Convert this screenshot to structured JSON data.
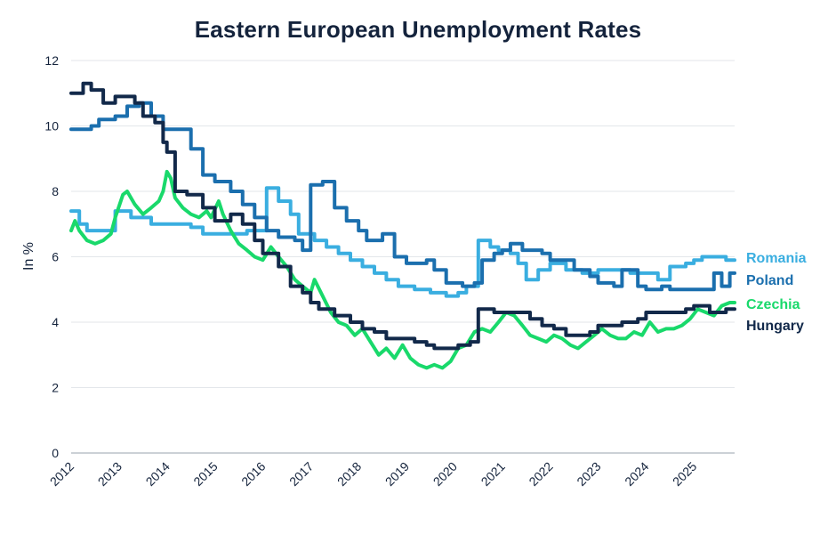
{
  "chart_data": {
    "type": "line",
    "title": "Eastern European Unemployment Rates",
    "ylabel": "In %",
    "xlabel": "",
    "xlim": [
      2012,
      2025.85
    ],
    "ylim": [
      0,
      12
    ],
    "yticks": [
      0,
      2,
      4,
      6,
      8,
      10,
      12
    ],
    "xticks": [
      "2012",
      "2013",
      "2014",
      "2015",
      "2016",
      "2017",
      "2018",
      "2019",
      "2020",
      "2021",
      "2022",
      "2023",
      "2024",
      "2025"
    ],
    "grid": true,
    "legend_placement": "right-end",
    "series": [
      {
        "name": "Romania",
        "color": "#3aaee0",
        "step": true,
        "points": [
          [
            2012,
            7.4
          ],
          [
            2012.17,
            7.0
          ],
          [
            2012.33,
            6.8
          ],
          [
            2012.75,
            6.8
          ],
          [
            2012.92,
            7.4
          ],
          [
            2013.25,
            7.2
          ],
          [
            2013.67,
            7.0
          ],
          [
            2014.17,
            7.0
          ],
          [
            2014.5,
            6.9
          ],
          [
            2014.75,
            6.7
          ],
          [
            2015.25,
            6.7
          ],
          [
            2015.67,
            6.8
          ],
          [
            2016.08,
            8.1
          ],
          [
            2016.33,
            7.7
          ],
          [
            2016.58,
            7.3
          ],
          [
            2016.75,
            6.7
          ],
          [
            2017.08,
            6.5
          ],
          [
            2017.33,
            6.3
          ],
          [
            2017.58,
            6.1
          ],
          [
            2017.83,
            5.9
          ],
          [
            2018.08,
            5.7
          ],
          [
            2018.33,
            5.5
          ],
          [
            2018.58,
            5.3
          ],
          [
            2018.83,
            5.1
          ],
          [
            2019.17,
            5.0
          ],
          [
            2019.5,
            4.9
          ],
          [
            2019.83,
            4.8
          ],
          [
            2020.08,
            4.9
          ],
          [
            2020.25,
            5.1
          ],
          [
            2020.5,
            6.5
          ],
          [
            2020.75,
            6.3
          ],
          [
            2020.92,
            6.2
          ],
          [
            2021.17,
            6.1
          ],
          [
            2021.33,
            5.8
          ],
          [
            2021.5,
            5.3
          ],
          [
            2021.75,
            5.6
          ],
          [
            2022.0,
            5.8
          ],
          [
            2022.33,
            5.6
          ],
          [
            2022.67,
            5.5
          ],
          [
            2023.0,
            5.6
          ],
          [
            2023.33,
            5.6
          ],
          [
            2023.67,
            5.5
          ],
          [
            2024.0,
            5.5
          ],
          [
            2024.25,
            5.3
          ],
          [
            2024.5,
            5.7
          ],
          [
            2024.83,
            5.8
          ],
          [
            2025.0,
            5.9
          ],
          [
            2025.17,
            6.0
          ],
          [
            2025.5,
            6.0
          ],
          [
            2025.67,
            5.9
          ],
          [
            2025.85,
            5.9
          ]
        ]
      },
      {
        "name": "Poland",
        "color": "#1b6fae",
        "step": true,
        "points": [
          [
            2012,
            9.9
          ],
          [
            2012.42,
            10.0
          ],
          [
            2012.58,
            10.2
          ],
          [
            2012.92,
            10.3
          ],
          [
            2013.17,
            10.6
          ],
          [
            2013.42,
            10.7
          ],
          [
            2013.67,
            10.3
          ],
          [
            2013.92,
            9.9
          ],
          [
            2014.5,
            9.3
          ],
          [
            2014.75,
            8.5
          ],
          [
            2015.0,
            8.3
          ],
          [
            2015.33,
            8.0
          ],
          [
            2015.58,
            7.6
          ],
          [
            2015.83,
            7.2
          ],
          [
            2016.08,
            6.8
          ],
          [
            2016.33,
            6.6
          ],
          [
            2016.67,
            6.5
          ],
          [
            2016.83,
            6.2
          ],
          [
            2017.0,
            8.2
          ],
          [
            2017.25,
            8.3
          ],
          [
            2017.5,
            7.5
          ],
          [
            2017.75,
            7.1
          ],
          [
            2018.0,
            6.8
          ],
          [
            2018.17,
            6.5
          ],
          [
            2018.5,
            6.7
          ],
          [
            2018.75,
            6.0
          ],
          [
            2019.0,
            5.8
          ],
          [
            2019.42,
            5.9
          ],
          [
            2019.58,
            5.6
          ],
          [
            2019.83,
            5.2
          ],
          [
            2020.17,
            5.1
          ],
          [
            2020.42,
            5.2
          ],
          [
            2020.58,
            5.9
          ],
          [
            2020.83,
            6.1
          ],
          [
            2021.0,
            6.2
          ],
          [
            2021.17,
            6.4
          ],
          [
            2021.42,
            6.2
          ],
          [
            2021.83,
            6.1
          ],
          [
            2022.0,
            5.9
          ],
          [
            2022.5,
            5.6
          ],
          [
            2022.83,
            5.4
          ],
          [
            2023.0,
            5.2
          ],
          [
            2023.33,
            5.1
          ],
          [
            2023.5,
            5.6
          ],
          [
            2023.83,
            5.1
          ],
          [
            2024.0,
            5.0
          ],
          [
            2024.33,
            5.1
          ],
          [
            2024.5,
            5.0
          ],
          [
            2025.0,
            5.0
          ],
          [
            2025.42,
            5.5
          ],
          [
            2025.58,
            5.1
          ],
          [
            2025.75,
            5.5
          ],
          [
            2025.85,
            5.5
          ]
        ]
      },
      {
        "name": "Czechia",
        "color": "#19d96b",
        "step": false,
        "points": [
          [
            2012,
            6.8
          ],
          [
            2012.08,
            7.1
          ],
          [
            2012.17,
            6.8
          ],
          [
            2012.33,
            6.5
          ],
          [
            2012.5,
            6.4
          ],
          [
            2012.67,
            6.5
          ],
          [
            2012.83,
            6.7
          ],
          [
            2012.92,
            7.2
          ],
          [
            2013.08,
            7.9
          ],
          [
            2013.17,
            8.0
          ],
          [
            2013.33,
            7.6
          ],
          [
            2013.5,
            7.3
          ],
          [
            2013.67,
            7.5
          ],
          [
            2013.83,
            7.7
          ],
          [
            2013.92,
            8.0
          ],
          [
            2014.0,
            8.6
          ],
          [
            2014.08,
            8.4
          ],
          [
            2014.17,
            7.8
          ],
          [
            2014.33,
            7.5
          ],
          [
            2014.5,
            7.3
          ],
          [
            2014.67,
            7.2
          ],
          [
            2014.83,
            7.4
          ],
          [
            2014.92,
            7.2
          ],
          [
            2015.08,
            7.7
          ],
          [
            2015.17,
            7.3
          ],
          [
            2015.33,
            6.8
          ],
          [
            2015.5,
            6.4
          ],
          [
            2015.67,
            6.2
          ],
          [
            2015.83,
            6.0
          ],
          [
            2016.0,
            5.9
          ],
          [
            2016.17,
            6.3
          ],
          [
            2016.33,
            6.0
          ],
          [
            2016.5,
            5.7
          ],
          [
            2016.67,
            5.3
          ],
          [
            2016.83,
            5.1
          ],
          [
            2017.0,
            4.9
          ],
          [
            2017.08,
            5.3
          ],
          [
            2017.25,
            4.8
          ],
          [
            2017.42,
            4.3
          ],
          [
            2017.58,
            4.0
          ],
          [
            2017.75,
            3.9
          ],
          [
            2017.92,
            3.6
          ],
          [
            2018.08,
            3.8
          ],
          [
            2018.25,
            3.4
          ],
          [
            2018.42,
            3.0
          ],
          [
            2018.58,
            3.2
          ],
          [
            2018.75,
            2.9
          ],
          [
            2018.92,
            3.3
          ],
          [
            2019.08,
            2.9
          ],
          [
            2019.25,
            2.7
          ],
          [
            2019.42,
            2.6
          ],
          [
            2019.58,
            2.7
          ],
          [
            2019.75,
            2.6
          ],
          [
            2019.92,
            2.8
          ],
          [
            2020.08,
            3.2
          ],
          [
            2020.25,
            3.3
          ],
          [
            2020.42,
            3.7
          ],
          [
            2020.58,
            3.8
          ],
          [
            2020.75,
            3.7
          ],
          [
            2020.92,
            4.0
          ],
          [
            2021.08,
            4.3
          ],
          [
            2021.25,
            4.2
          ],
          [
            2021.42,
            3.9
          ],
          [
            2021.58,
            3.6
          ],
          [
            2021.75,
            3.5
          ],
          [
            2021.92,
            3.4
          ],
          [
            2022.08,
            3.6
          ],
          [
            2022.25,
            3.5
          ],
          [
            2022.42,
            3.3
          ],
          [
            2022.58,
            3.2
          ],
          [
            2022.75,
            3.4
          ],
          [
            2022.92,
            3.6
          ],
          [
            2023.08,
            3.8
          ],
          [
            2023.25,
            3.6
          ],
          [
            2023.42,
            3.5
          ],
          [
            2023.58,
            3.5
          ],
          [
            2023.75,
            3.7
          ],
          [
            2023.92,
            3.6
          ],
          [
            2024.08,
            4.0
          ],
          [
            2024.25,
            3.7
          ],
          [
            2024.42,
            3.8
          ],
          [
            2024.58,
            3.8
          ],
          [
            2024.75,
            3.9
          ],
          [
            2024.92,
            4.1
          ],
          [
            2025.08,
            4.4
          ],
          [
            2025.25,
            4.3
          ],
          [
            2025.42,
            4.2
          ],
          [
            2025.58,
            4.5
          ],
          [
            2025.75,
            4.6
          ],
          [
            2025.85,
            4.6
          ]
        ]
      },
      {
        "name": "Hungary",
        "color": "#12294a",
        "step": true,
        "points": [
          [
            2012,
            11.0
          ],
          [
            2012.25,
            11.3
          ],
          [
            2012.42,
            11.1
          ],
          [
            2012.67,
            10.7
          ],
          [
            2012.92,
            10.9
          ],
          [
            2013.33,
            10.7
          ],
          [
            2013.5,
            10.3
          ],
          [
            2013.75,
            10.1
          ],
          [
            2013.92,
            9.5
          ],
          [
            2014.0,
            9.2
          ],
          [
            2014.17,
            8.0
          ],
          [
            2014.42,
            7.9
          ],
          [
            2014.75,
            7.5
          ],
          [
            2015.0,
            7.1
          ],
          [
            2015.33,
            7.3
          ],
          [
            2015.58,
            7.0
          ],
          [
            2015.83,
            6.5
          ],
          [
            2016.0,
            6.1
          ],
          [
            2016.33,
            5.7
          ],
          [
            2016.58,
            5.1
          ],
          [
            2016.83,
            4.9
          ],
          [
            2017.0,
            4.6
          ],
          [
            2017.17,
            4.4
          ],
          [
            2017.5,
            4.2
          ],
          [
            2017.83,
            4.0
          ],
          [
            2018.08,
            3.8
          ],
          [
            2018.33,
            3.7
          ],
          [
            2018.58,
            3.5
          ],
          [
            2018.92,
            3.5
          ],
          [
            2019.17,
            3.4
          ],
          [
            2019.42,
            3.3
          ],
          [
            2019.58,
            3.2
          ],
          [
            2019.92,
            3.2
          ],
          [
            2020.08,
            3.3
          ],
          [
            2020.33,
            3.4
          ],
          [
            2020.5,
            4.4
          ],
          [
            2020.83,
            4.3
          ],
          [
            2021.17,
            4.3
          ],
          [
            2021.58,
            4.1
          ],
          [
            2021.83,
            3.9
          ],
          [
            2022.08,
            3.8
          ],
          [
            2022.33,
            3.6
          ],
          [
            2022.58,
            3.6
          ],
          [
            2022.83,
            3.7
          ],
          [
            2023.0,
            3.9
          ],
          [
            2023.5,
            4.0
          ],
          [
            2023.83,
            4.1
          ],
          [
            2024.0,
            4.3
          ],
          [
            2024.5,
            4.3
          ],
          [
            2024.83,
            4.4
          ],
          [
            2025.0,
            4.5
          ],
          [
            2025.33,
            4.3
          ],
          [
            2025.67,
            4.4
          ],
          [
            2025.85,
            4.4
          ]
        ]
      }
    ]
  }
}
